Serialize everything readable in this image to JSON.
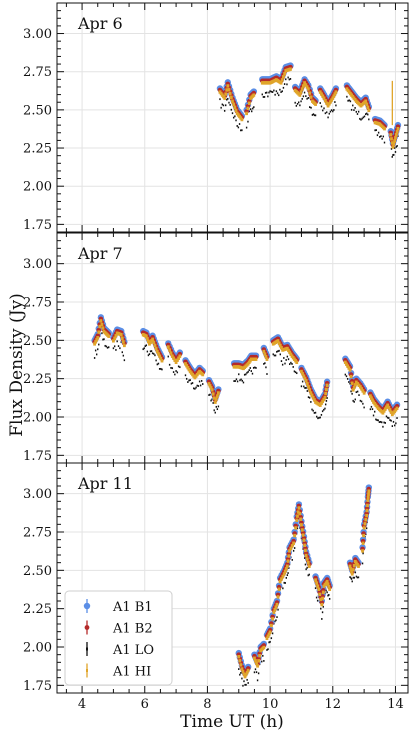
{
  "chart_data": {
    "type": "scatter",
    "xlabel": "Time UT (h)",
    "ylabel": "Flux Density (Jy)",
    "xlim": [
      3.2,
      14.4
    ],
    "x_ticks": [
      4,
      6,
      8,
      10,
      12,
      14
    ],
    "grid": true,
    "legend_position": "lower-left (bottom panel)",
    "series": [
      {
        "name": "A1 B1",
        "color": "#5b8ee6",
        "marker": "circle"
      },
      {
        "name": "A1 B2",
        "color": "#b52a2a",
        "marker": "circle"
      },
      {
        "name": "A1 LO",
        "color": "#111111",
        "marker": "point"
      },
      {
        "name": "A1 HI",
        "color": "#e0a52a",
        "marker": "point"
      }
    ],
    "panels": [
      {
        "title": "Apr 6",
        "ylim": [
          1.7,
          3.2
        ],
        "y_ticks": [
          "3.00",
          "2.75",
          "2.50",
          "2.25",
          "2.00",
          "1.75"
        ],
        "segments": [
          [
            [
              8.4,
              2.64
            ],
            [
              8.55,
              2.6
            ],
            [
              8.65,
              2.68
            ],
            [
              8.8,
              2.58
            ],
            [
              8.95,
              2.5
            ],
            [
              9.1,
              2.46
            ]
          ],
          [
            [
              9.25,
              2.5
            ],
            [
              9.38,
              2.6
            ],
            [
              9.48,
              2.62
            ]
          ],
          [
            [
              9.75,
              2.7
            ],
            [
              10.0,
              2.7
            ],
            [
              10.2,
              2.72
            ],
            [
              10.35,
              2.7
            ],
            [
              10.5,
              2.78
            ],
            [
              10.65,
              2.79
            ]
          ],
          [
            [
              10.8,
              2.65
            ],
            [
              10.95,
              2.62
            ],
            [
              11.1,
              2.7
            ],
            [
              11.22,
              2.66
            ],
            [
              11.35,
              2.58
            ],
            [
              11.45,
              2.56
            ]
          ],
          [
            [
              11.6,
              2.64
            ],
            [
              11.72,
              2.6
            ],
            [
              11.85,
              2.55
            ],
            [
              12.0,
              2.6
            ],
            [
              12.1,
              2.64
            ]
          ],
          [
            [
              12.45,
              2.66
            ],
            [
              12.6,
              2.62
            ],
            [
              12.75,
              2.58
            ],
            [
              12.9,
              2.55
            ],
            [
              13.05,
              2.58
            ],
            [
              13.15,
              2.52
            ]
          ],
          [
            [
              13.35,
              2.44
            ],
            [
              13.5,
              2.43
            ],
            [
              13.65,
              2.4
            ]
          ],
          [
            [
              13.85,
              2.36
            ],
            [
              13.92,
              2.28
            ],
            [
              14.0,
              2.34
            ],
            [
              14.08,
              2.4
            ]
          ]
        ],
        "hi_spike": {
          "x": 13.9,
          "y": 2.69
        }
      },
      {
        "title": "Apr 7",
        "ylim": [
          1.7,
          3.2
        ],
        "y_ticks": [
          "3.00",
          "2.75",
          "2.50",
          "2.25",
          "2.00",
          "1.75"
        ],
        "segments": [
          [
            [
              4.4,
              2.5
            ],
            [
              4.5,
              2.54
            ],
            [
              4.6,
              2.65
            ],
            [
              4.7,
              2.58
            ],
            [
              4.85,
              2.55
            ]
          ],
          [
            [
              5.0,
              2.52
            ],
            [
              5.12,
              2.57
            ],
            [
              5.25,
              2.56
            ],
            [
              5.35,
              2.49
            ]
          ],
          [
            [
              5.95,
              2.56
            ],
            [
              6.05,
              2.55
            ],
            [
              6.15,
              2.5
            ],
            [
              6.25,
              2.53
            ],
            [
              6.4,
              2.45
            ],
            [
              6.55,
              2.39
            ]
          ],
          [
            [
              6.75,
              2.48
            ],
            [
              6.88,
              2.42
            ],
            [
              7.0,
              2.38
            ],
            [
              7.12,
              2.42
            ]
          ],
          [
            [
              7.3,
              2.37
            ],
            [
              7.45,
              2.32
            ],
            [
              7.6,
              2.28
            ],
            [
              7.75,
              2.32
            ],
            [
              7.85,
              2.3
            ]
          ],
          [
            [
              8.05,
              2.24
            ],
            [
              8.15,
              2.2
            ],
            [
              8.25,
              2.12
            ],
            [
              8.35,
              2.18
            ]
          ],
          [
            [
              8.85,
              2.35
            ],
            [
              9.0,
              2.35
            ],
            [
              9.15,
              2.34
            ],
            [
              9.3,
              2.37
            ],
            [
              9.4,
              2.4
            ],
            [
              9.55,
              2.4
            ]
          ],
          [
            [
              9.8,
              2.45
            ],
            [
              9.9,
              2.4
            ]
          ],
          [
            [
              10.1,
              2.5
            ],
            [
              10.25,
              2.52
            ],
            [
              10.4,
              2.46
            ],
            [
              10.55,
              2.47
            ],
            [
              10.7,
              2.42
            ],
            [
              10.85,
              2.38
            ]
          ],
          [
            [
              11.0,
              2.32
            ],
            [
              11.15,
              2.26
            ],
            [
              11.3,
              2.18
            ],
            [
              11.45,
              2.12
            ],
            [
              11.6,
              2.1
            ],
            [
              11.75,
              2.15
            ],
            [
              11.82,
              2.23
            ]
          ],
          [
            [
              12.4,
              2.38
            ],
            [
              12.55,
              2.33
            ],
            [
              12.65,
              2.2
            ],
            [
              12.75,
              2.25
            ],
            [
              12.88,
              2.22
            ],
            [
              13.0,
              2.18
            ]
          ],
          [
            [
              13.2,
              2.16
            ],
            [
              13.3,
              2.12
            ],
            [
              13.45,
              2.08
            ],
            [
              13.6,
              2.05
            ],
            [
              13.75,
              2.1
            ],
            [
              13.9,
              2.04
            ],
            [
              14.05,
              2.08
            ]
          ]
        ]
      },
      {
        "title": "Apr 11",
        "ylim": [
          1.7,
          3.2
        ],
        "y_ticks": [
          "3.00",
          "2.75",
          "2.50",
          "2.25",
          "2.00",
          "1.75"
        ],
        "segments": [
          [
            [
              9.0,
              1.96
            ],
            [
              9.1,
              1.88
            ],
            [
              9.2,
              1.83
            ],
            [
              9.3,
              1.87
            ]
          ],
          [
            [
              9.5,
              1.95
            ],
            [
              9.6,
              1.9
            ],
            [
              9.7,
              2.0
            ],
            [
              9.8,
              2.02
            ]
          ],
          [
            [
              9.9,
              2.08
            ],
            [
              10.0,
              2.12
            ],
            [
              10.12,
              2.25
            ],
            [
              10.22,
              2.3
            ],
            [
              10.32,
              2.45
            ],
            [
              10.45,
              2.5
            ],
            [
              10.55,
              2.55
            ],
            [
              10.62,
              2.65
            ],
            [
              10.75,
              2.7
            ],
            [
              10.85,
              2.85
            ],
            [
              10.92,
              2.93
            ],
            [
              11.0,
              2.82
            ],
            [
              11.08,
              2.72
            ],
            [
              11.15,
              2.62
            ],
            [
              11.25,
              2.55
            ]
          ],
          [
            [
              11.45,
              2.46
            ],
            [
              11.55,
              2.4
            ],
            [
              11.65,
              2.3
            ],
            [
              11.72,
              2.42
            ],
            [
              11.82,
              2.45
            ],
            [
              11.9,
              2.4
            ]
          ],
          [
            [
              12.55,
              2.55
            ],
            [
              12.62,
              2.5
            ],
            [
              12.72,
              2.58
            ],
            [
              12.82,
              2.55
            ]
          ],
          [
            [
              12.95,
              2.65
            ],
            [
              13.0,
              2.8
            ],
            [
              13.08,
              2.88
            ],
            [
              13.12,
              2.98
            ],
            [
              13.15,
              3.04
            ]
          ]
        ]
      }
    ]
  }
}
